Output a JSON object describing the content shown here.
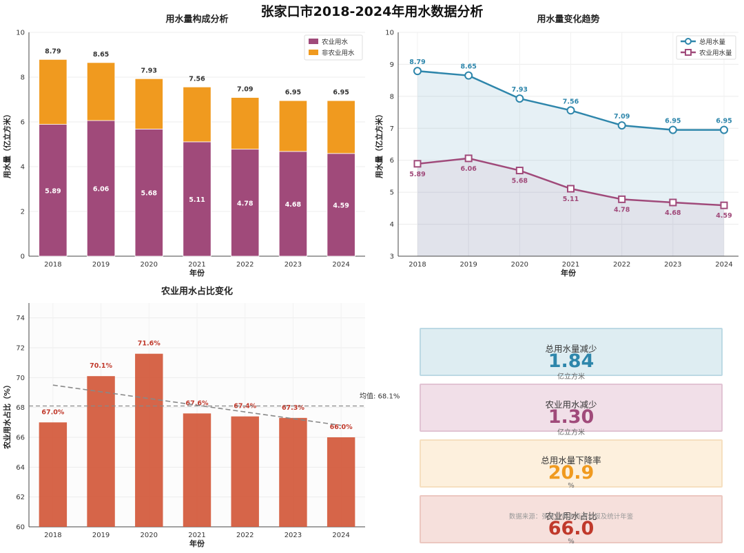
{
  "page": {
    "title": "张家口市2018-2024年用水数据分析"
  },
  "colors": {
    "agri": "#a04a7a",
    "nonagri": "#f09a1f",
    "total": "#2e86ab",
    "ratio": "#d2583a",
    "trend": "#888888"
  },
  "chart_data": [
    {
      "type": "bar",
      "title": "用水量构成分析",
      "xlabel": "年份",
      "ylabel": "用水量（亿立方米）",
      "categories": [
        "2018",
        "2019",
        "2020",
        "2021",
        "2022",
        "2023",
        "2024"
      ],
      "series": [
        {
          "name": "农业用水",
          "values": [
            5.89,
            6.06,
            5.68,
            5.11,
            4.78,
            4.68,
            4.59
          ]
        },
        {
          "name": "非农业用水",
          "values": [
            2.9,
            2.59,
            2.25,
            2.45,
            2.31,
            2.27,
            2.36
          ]
        }
      ],
      "totals": [
        "8.79",
        "8.65",
        "7.93",
        "7.56",
        "7.09",
        "6.95",
        "6.95"
      ],
      "agri_labels": [
        "5.89",
        "6.06",
        "5.68",
        "5.11",
        "4.78",
        "4.68",
        "4.59"
      ],
      "ylim": [
        0,
        10
      ],
      "yticks": [
        "0",
        "2",
        "4",
        "6",
        "8",
        "10"
      ],
      "legend_position": "top-right"
    },
    {
      "type": "line",
      "title": "用水量变化趋势",
      "xlabel": "年份",
      "ylabel": "用水量（亿立方米）",
      "x": [
        "2018",
        "2019",
        "2020",
        "2021",
        "2022",
        "2023",
        "2024"
      ],
      "series": [
        {
          "name": "总用水量",
          "values": [
            8.79,
            8.65,
            7.93,
            7.56,
            7.09,
            6.95,
            6.95
          ],
          "labels": [
            "8.79",
            "8.65",
            "7.93",
            "7.56",
            "7.09",
            "6.95",
            "6.95"
          ]
        },
        {
          "name": "农业用水量",
          "values": [
            5.89,
            6.06,
            5.68,
            5.11,
            4.78,
            4.68,
            4.59
          ],
          "labels": [
            "5.89",
            "6.06",
            "5.68",
            "5.11",
            "4.78",
            "4.68",
            "4.59"
          ]
        }
      ],
      "ylim": [
        3,
        10
      ],
      "yticks": [
        "3",
        "4",
        "5",
        "6",
        "7",
        "8",
        "9",
        "10"
      ],
      "legend_position": "top-right"
    },
    {
      "type": "bar",
      "title": "农业用水占比变化",
      "xlabel": "年份",
      "ylabel": "农业用水占比（%）",
      "categories": [
        "2018",
        "2019",
        "2020",
        "2021",
        "2022",
        "2023",
        "2024"
      ],
      "values": [
        67.0,
        70.1,
        71.6,
        67.6,
        67.4,
        67.3,
        66.0
      ],
      "labels": [
        "67.0%",
        "70.1%",
        "71.6%",
        "67.6%",
        "67.4%",
        "67.3%",
        "66.0%"
      ],
      "mean": 68.1,
      "mean_label": "均值: 68.1%",
      "trend_start": 69.5,
      "trend_end": 66.8,
      "ylim": [
        60,
        75
      ],
      "yticks": [
        "60",
        "62",
        "64",
        "66",
        "68",
        "70",
        "72",
        "74"
      ]
    }
  ],
  "summary_cards": [
    {
      "title": "总用水量减少",
      "value": "1.84",
      "unit": "亿立方米",
      "color": "#2e86ab",
      "bg": "#deedf2",
      "border": "#bcd9e4"
    },
    {
      "title": "农业用水减少",
      "value": "1.30",
      "unit": "亿立方米",
      "color": "#a04a7a",
      "bg": "#f1dfe8",
      "border": "#e1c3d3"
    },
    {
      "title": "总用水量下降率",
      "value": "20.9",
      "unit": "%",
      "color": "#f09a1f",
      "bg": "#fdf0dd",
      "border": "#f6dfbf"
    },
    {
      "title": "农业用水占比",
      "value": "66.0",
      "unit": "%",
      "color": "#c0392b",
      "bg": "#f6e0dc",
      "border": "#ecc7c0"
    }
  ],
  "source_note": "数据来源：张家口市水资源公报及统计年鉴"
}
